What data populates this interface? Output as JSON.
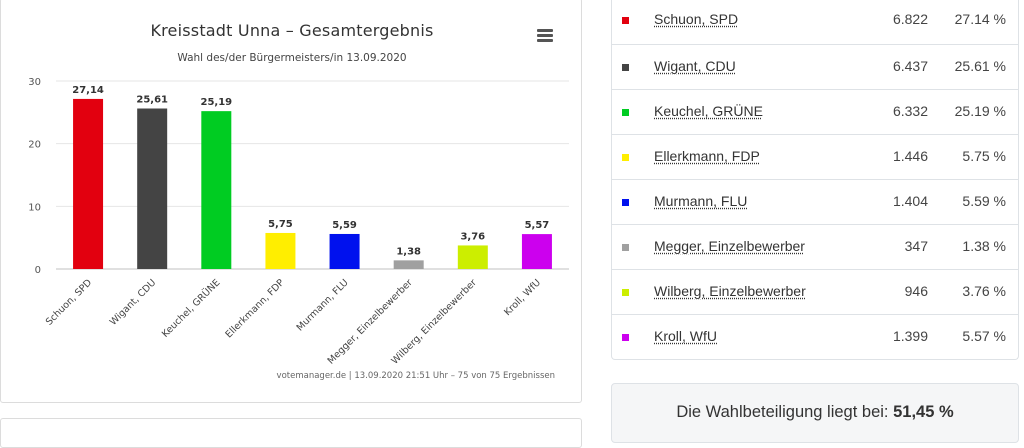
{
  "chart_data": {
    "type": "bar",
    "title": "Kreisstadt Unna – Gesamtergebnis",
    "subtitle": "Wahl des/der Bürgermeisters/in 13.09.2020",
    "categories": [
      "Schuon, SPD",
      "Wigant, CDU",
      "Keuchel, GRÜNE",
      "Ellerkmann, FDP",
      "Murmann, FLU",
      "Megger, Einzelbewerber",
      "Wilberg, Einzelbewerber",
      "Kroll, WfU"
    ],
    "values": [
      27.14,
      25.61,
      25.19,
      5.75,
      5.59,
      1.38,
      3.76,
      5.57
    ],
    "value_labels": [
      "27,14",
      "25,61",
      "25,19",
      "5,75",
      "5,59",
      "1,38",
      "3,76",
      "5,57"
    ],
    "colors": [
      "#e2000f",
      "#444444",
      "#00cc22",
      "#ffee00",
      "#0011ee",
      "#a0a0a0",
      "#ccee00",
      "#cc00ee"
    ],
    "yticks": [
      0,
      10,
      20,
      30
    ],
    "ylim": [
      0,
      30
    ],
    "grid": true,
    "xlabel": "",
    "ylabel": "",
    "credits": "votemanager.de | 13.09.2020 21:51 Uhr – 75 von 75 Ergebnissen"
  },
  "menu_icon": "hamburger-menu-icon",
  "results": [
    {
      "candidate": "Schuon, SPD",
      "votes": "6.822",
      "percent": "27.14 %",
      "color": "#e2000f"
    },
    {
      "candidate": "Wigant, CDU",
      "votes": "6.437",
      "percent": "25.61 %",
      "color": "#444444"
    },
    {
      "candidate": "Keuchel, GRÜNE",
      "votes": "6.332",
      "percent": "25.19 %",
      "color": "#00cc22"
    },
    {
      "candidate": "Ellerkmann, FDP",
      "votes": "1.446",
      "percent": "5.75 %",
      "color": "#ffee00"
    },
    {
      "candidate": "Murmann, FLU",
      "votes": "1.404",
      "percent": "5.59 %",
      "color": "#0011ee"
    },
    {
      "candidate": "Megger, Einzelbewerber",
      "votes": "347",
      "percent": "1.38 %",
      "color": "#a0a0a0"
    },
    {
      "candidate": "Wilberg, Einzelbewerber",
      "votes": "946",
      "percent": "3.76 %",
      "color": "#ccee00"
    },
    {
      "candidate": "Kroll, WfU",
      "votes": "1.399",
      "percent": "5.57 %",
      "color": "#cc00ee"
    }
  ],
  "turnout": {
    "label": "Die Wahlbeteiligung liegt bei:",
    "value": "51,45 %"
  }
}
